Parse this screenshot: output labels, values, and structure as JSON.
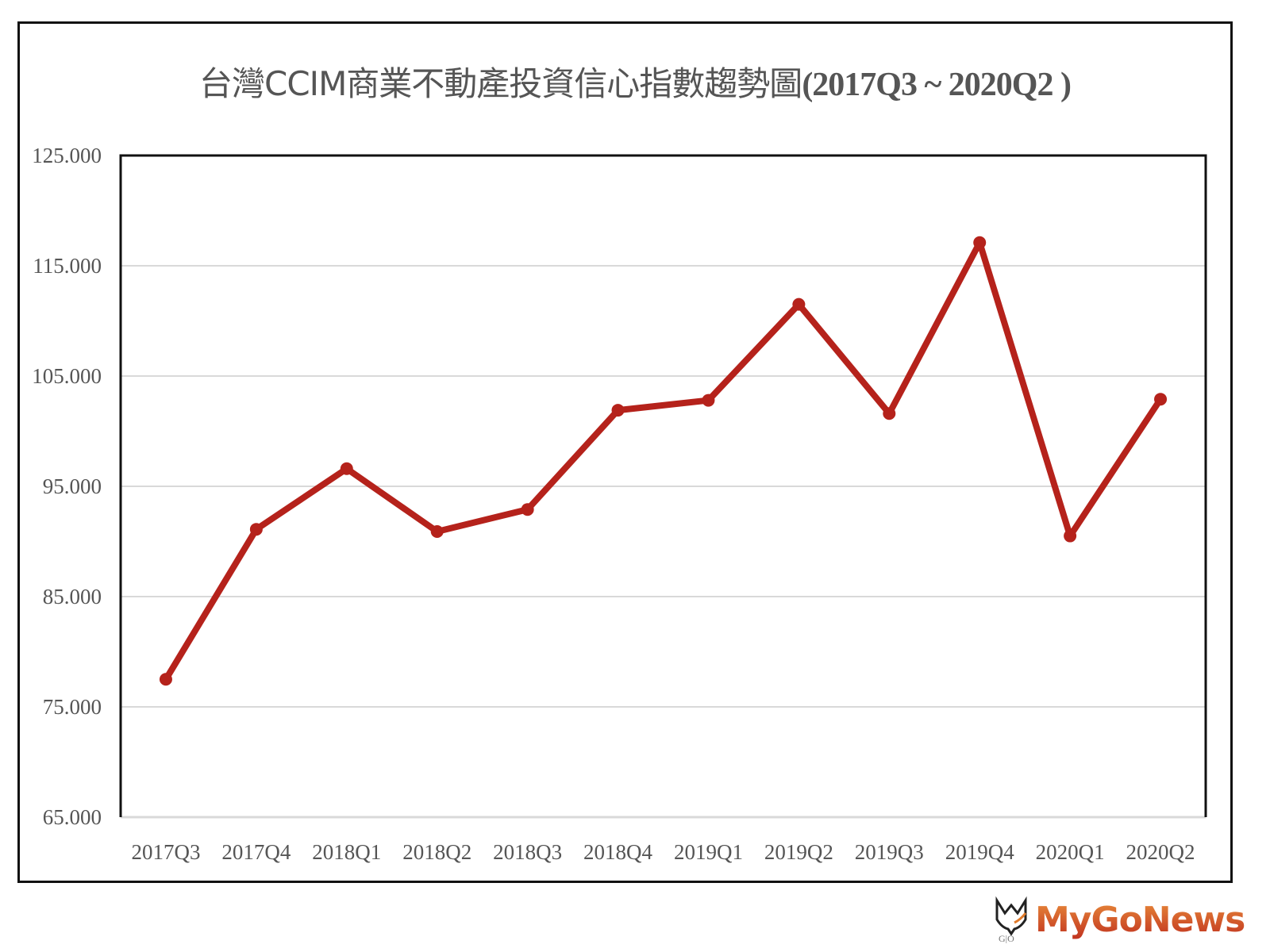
{
  "title": {
    "zh": "台灣CCIM商業不動產投資信心指數趨勢圖",
    "range": "(2017Q3 ~ 2020Q2 )"
  },
  "watermark": {
    "brand": "MyGoNews",
    "icon": "mygo-logo-icon"
  },
  "colors": {
    "line": "#b5221b",
    "grid": "#d9d9d9",
    "axis": "#111111",
    "text": "#555555"
  },
  "chart_data": {
    "type": "line",
    "title": "台灣CCIM商業不動產投資信心指數趨勢圖(2017Q3 ~ 2020Q2 )",
    "xlabel": "",
    "ylabel": "",
    "ylim": [
      65,
      125
    ],
    "yticks": [
      "65.000",
      "75.000",
      "85.000",
      "95.000",
      "105.000",
      "115.000",
      "125.000"
    ],
    "grid": true,
    "legend": "none",
    "categories": [
      "2017Q3",
      "2017Q4",
      "2018Q1",
      "2018Q2",
      "2018Q3",
      "2018Q4",
      "2019Q1",
      "2019Q2",
      "2019Q3",
      "2019Q4",
      "2020Q1",
      "2020Q2"
    ],
    "series": [
      {
        "name": "CCIM商業不動產投資信心指數",
        "values": [
          77.5,
          91.1,
          96.6,
          90.9,
          92.9,
          101.9,
          102.8,
          111.5,
          101.6,
          117.1,
          90.5,
          102.9
        ]
      }
    ]
  }
}
